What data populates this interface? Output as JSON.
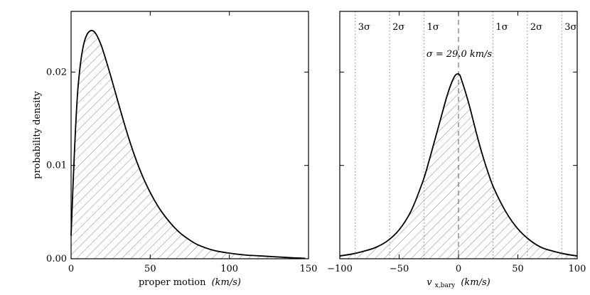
{
  "chart_data": [
    {
      "type": "area",
      "title": "",
      "xlabel": "proper motion",
      "xlabel_unit": "(km/s)",
      "ylabel": "probability density",
      "xlim": [
        0,
        150
      ],
      "ylim": [
        0,
        0.0265
      ],
      "xticks": [
        0,
        50,
        100,
        150
      ],
      "xtick_labels": [
        "0",
        "50",
        "100",
        "150"
      ],
      "yticks": [
        0.0,
        0.01,
        0.02
      ],
      "ytick_labels": [
        "0.00",
        "0.01",
        "0.02"
      ],
      "fill": "hatched",
      "series": [
        {
          "x": [
            0,
            2,
            4,
            6,
            8,
            10,
            12,
            14,
            16,
            18,
            20,
            25,
            30,
            35,
            40,
            45,
            50,
            55,
            60,
            65,
            70,
            75,
            80,
            90,
            100,
            110,
            120,
            130,
            140,
            148
          ],
          "values": [
            0.0025,
            0.011,
            0.0175,
            0.021,
            0.023,
            0.024,
            0.0244,
            0.0244,
            0.024,
            0.0233,
            0.0224,
            0.0196,
            0.0166,
            0.0137,
            0.0111,
            0.0089,
            0.0071,
            0.0056,
            0.0044,
            0.0034,
            0.0026,
            0.002,
            0.0015,
            0.0009,
            0.0006,
            0.0004,
            0.0003,
            0.0002,
            0.0001,
            5e-05
          ]
        }
      ]
    },
    {
      "type": "area",
      "title": "",
      "xlabel": "v",
      "xlabel_sub": "x,bary",
      "xlabel_unit": "(km/s)",
      "ylabel": "",
      "xlim": [
        -100,
        100
      ],
      "ylim": [
        0,
        0.0265
      ],
      "xticks": [
        -100,
        -50,
        0,
        50,
        100
      ],
      "xtick_labels": [
        "−100",
        "−50",
        "0",
        "50",
        "100"
      ],
      "yticks": [
        0.0,
        0.01,
        0.02
      ],
      "fill": "hatched",
      "annotation": "σ = 29.0 km/s",
      "sigma_lines": [
        {
          "x": -87,
          "label": "3σ"
        },
        {
          "x": -58,
          "label": "2σ"
        },
        {
          "x": -29,
          "label": "1σ"
        },
        {
          "x": 29,
          "label": "1σ"
        },
        {
          "x": 58,
          "label": "2σ"
        },
        {
          "x": 87,
          "label": "3σ"
        }
      ],
      "center_line_x": 0,
      "series": [
        {
          "x": [
            -100,
            -90,
            -80,
            -70,
            -60,
            -50,
            -40,
            -30,
            -25,
            -20,
            -15,
            -10,
            -6,
            -3,
            -1,
            1,
            3,
            6,
            10,
            15,
            20,
            25,
            30,
            40,
            50,
            60,
            70,
            80,
            90,
            100
          ],
          "values": [
            0.0003,
            0.0005,
            0.0008,
            0.0012,
            0.0019,
            0.0031,
            0.0051,
            0.0083,
            0.0104,
            0.0127,
            0.015,
            0.0173,
            0.0188,
            0.0196,
            0.0198,
            0.0197,
            0.019,
            0.0178,
            0.016,
            0.0135,
            0.0112,
            0.0092,
            0.0075,
            0.005,
            0.0032,
            0.002,
            0.0012,
            0.0008,
            0.0005,
            0.0003
          ]
        }
      ]
    }
  ]
}
